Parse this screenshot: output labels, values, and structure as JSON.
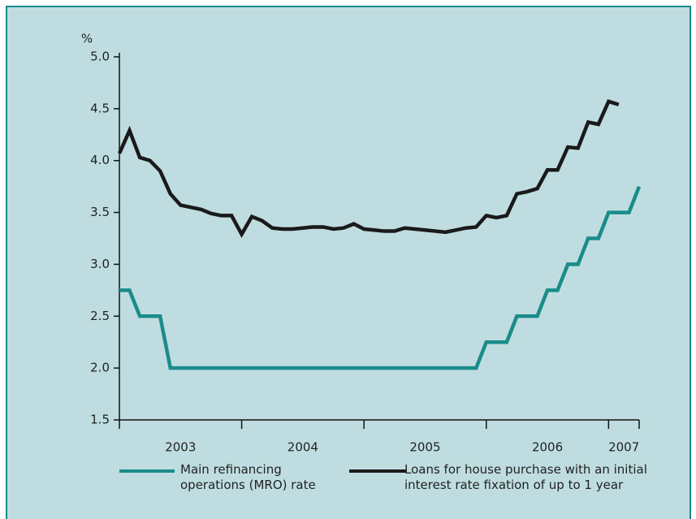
{
  "chart_data": {
    "type": "line",
    "y_unit": "%",
    "x": [
      2003,
      2003.083,
      2003.167,
      2003.25,
      2003.333,
      2003.417,
      2003.5,
      2003.583,
      2003.667,
      2003.75,
      2003.833,
      2003.917,
      2004,
      2004.083,
      2004.167,
      2004.25,
      2004.333,
      2004.417,
      2004.5,
      2004.583,
      2004.667,
      2004.75,
      2004.833,
      2004.917,
      2005,
      2005.083,
      2005.167,
      2005.25,
      2005.333,
      2005.417,
      2005.5,
      2005.583,
      2005.667,
      2005.75,
      2005.833,
      2005.917,
      2006,
      2006.083,
      2006.167,
      2006.25,
      2006.333,
      2006.417,
      2006.5,
      2006.583,
      2006.667,
      2006.75,
      2006.833,
      2006.917,
      2007,
      2007.083,
      2007.167,
      2007.25
    ],
    "series": [
      {
        "name": "Main refinancing operations (MRO) rate",
        "color": "#1a8c8a",
        "values": [
          2.75,
          2.75,
          2.5,
          2.5,
          2.5,
          2.0,
          2.0,
          2.0,
          2.0,
          2.0,
          2.0,
          2.0,
          2.0,
          2.0,
          2.0,
          2.0,
          2.0,
          2.0,
          2.0,
          2.0,
          2.0,
          2.0,
          2.0,
          2.0,
          2.0,
          2.0,
          2.0,
          2.0,
          2.0,
          2.0,
          2.0,
          2.0,
          2.0,
          2.0,
          2.0,
          2.0,
          2.25,
          2.25,
          2.25,
          2.5,
          2.5,
          2.5,
          2.75,
          2.75,
          3.0,
          3.0,
          3.25,
          3.25,
          3.5,
          3.5,
          3.5,
          3.75
        ]
      },
      {
        "name": "Loans for house purchase with an initial interest rate fixation of up to 1 year",
        "color": "#1a1a1a",
        "values": [
          4.07,
          4.29,
          4.03,
          4.0,
          3.9,
          3.68,
          3.57,
          3.55,
          3.53,
          3.49,
          3.47,
          3.47,
          3.29,
          3.46,
          3.42,
          3.35,
          3.34,
          3.34,
          3.35,
          3.36,
          3.36,
          3.34,
          3.35,
          3.39,
          3.34,
          3.33,
          3.32,
          3.32,
          3.35,
          3.34,
          3.33,
          3.32,
          3.31,
          3.33,
          3.35,
          3.36,
          3.47,
          3.45,
          3.47,
          3.68,
          3.7,
          3.73,
          3.91,
          3.91,
          4.13,
          4.12,
          4.37,
          4.35,
          4.57,
          4.54,
          null,
          null
        ]
      }
    ],
    "xlim": [
      2003,
      2007.25
    ],
    "xticks": [
      2003,
      2004,
      2005,
      2006,
      2007,
      2007.25
    ],
    "year_labels": [
      "2003",
      "2004",
      "2005",
      "2006",
      "2007"
    ],
    "ylim": [
      1.5,
      5.0
    ],
    "yticks": [
      1.5,
      {
        "value": 2.0,
        "label": "2.0"
      },
      2.5,
      {
        "value": 3.0,
        "label": "3.0"
      },
      3.5,
      {
        "value": 4.0,
        "label": "4.0"
      },
      4.5,
      {
        "value": 5.0,
        "label": "5.0"
      }
    ],
    "grid": false
  }
}
